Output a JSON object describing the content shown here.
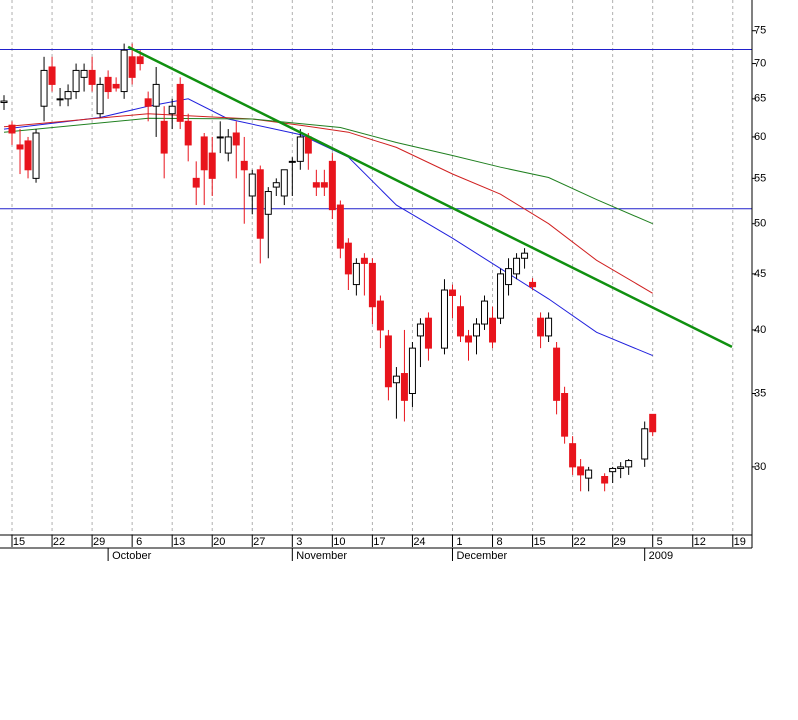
{
  "chart_data": {
    "type": "candlestick",
    "x": [
      -1,
      0,
      1,
      2,
      3,
      4,
      5,
      6,
      7,
      8,
      9,
      10,
      11,
      12,
      13,
      14,
      15,
      16,
      17,
      18,
      19,
      20,
      21,
      22,
      23,
      24,
      25,
      26,
      27,
      28,
      29,
      30,
      31,
      32,
      33,
      34,
      35,
      36,
      37,
      38,
      39,
      40,
      41,
      42,
      43,
      44,
      45,
      46,
      47,
      48,
      49,
      50,
      51,
      52,
      54,
      55,
      56,
      57,
      58,
      59,
      60,
      61,
      62,
      63,
      64,
      65,
      66,
      67,
      68,
      69,
      70,
      71,
      72,
      74,
      75,
      76,
      77,
      79,
      80
    ],
    "open": [
      64.5,
      61.5,
      59,
      59.5,
      55,
      64,
      69.5,
      65,
      65,
      66,
      68,
      69,
      63,
      68,
      67,
      66,
      71,
      71,
      65,
      64,
      62,
      63,
      67,
      62,
      55,
      60,
      58,
      60,
      58,
      60.5,
      57,
      53,
      56,
      51,
      54,
      53,
      57,
      57,
      60,
      54.5,
      54.5,
      57,
      52,
      48,
      44,
      46.5,
      46,
      42.5,
      39.5,
      35.8,
      36.5,
      35,
      39.5,
      41,
      38.5,
      43.5,
      42,
      39.5,
      39.5,
      40.5,
      41,
      41,
      44,
      45,
      46.5,
      44.2,
      41,
      39.5,
      38.5,
      35,
      31.5,
      30,
      29.3,
      29.4,
      29.7,
      29.9,
      30,
      30.5,
      33.5
    ],
    "high": [
      65.5,
      62,
      61,
      60,
      61,
      71,
      71,
      66.5,
      67,
      70,
      70,
      71,
      68,
      69,
      68,
      73,
      73,
      72,
      66,
      69.5,
      64,
      65,
      68,
      63,
      57,
      60.5,
      60,
      62,
      61,
      62,
      60,
      56,
      56.5,
      54,
      55,
      56,
      57.5,
      61,
      60.5,
      56,
      56,
      58,
      52.5,
      48.5,
      46.5,
      47,
      46.5,
      43,
      40,
      37,
      40,
      39,
      41,
      41.5,
      44.5,
      44,
      43,
      40,
      41,
      43,
      42,
      45.5,
      46.5,
      47,
      47.5,
      44.6,
      41.5,
      41.5,
      39,
      35.5,
      32,
      30.5,
      30,
      29.6,
      30,
      30.3,
      30.5,
      33,
      33.5
    ],
    "low": [
      63.5,
      59,
      55.5,
      55,
      54.5,
      62,
      66,
      64,
      64,
      65,
      66,
      66,
      62.5,
      65,
      66,
      65,
      67,
      69,
      62,
      60,
      55,
      61,
      61,
      57,
      52,
      52,
      53,
      58,
      57,
      55,
      50,
      51,
      46,
      46.5,
      53,
      52,
      53,
      56,
      56,
      53,
      53,
      50.5,
      46.5,
      43.5,
      43,
      43,
      40.5,
      38.5,
      34.5,
      33.2,
      33,
      34,
      37,
      37.5,
      38,
      41,
      39,
      37.5,
      38,
      40,
      38.5,
      40.5,
      43,
      44.5,
      45.5,
      43.5,
      38.5,
      39,
      33.5,
      31.5,
      29.5,
      28.5,
      28.5,
      28.5,
      29,
      29.3,
      29.5,
      30,
      32
    ],
    "close": [
      64.7,
      60.5,
      58.5,
      56,
      60.5,
      69,
      67,
      65,
      66,
      69,
      69,
      67,
      67,
      66,
      66.5,
      72,
      68,
      70,
      64,
      67,
      58,
      64,
      62,
      59,
      54,
      56,
      55,
      60,
      60,
      59,
      56,
      55.5,
      48.5,
      53.5,
      54.5,
      56,
      57,
      60,
      58,
      54,
      54,
      51.5,
      47.5,
      45,
      46,
      46,
      42,
      40,
      35.5,
      36.3,
      34.5,
      38.5,
      40.5,
      38.5,
      43.5,
      43,
      39.5,
      39,
      40.5,
      42.5,
      39,
      45,
      45.5,
      46.5,
      47,
      43.8,
      39.5,
      41,
      34.5,
      32,
      30,
      29.5,
      29.8,
      29,
      29.9,
      30,
      30.4,
      32.5,
      32.3
    ],
    "up_color": "#000000",
    "down_color": "#e8141c",
    "overlays": [
      {
        "color": "#2020dd",
        "x": [
          -1,
          11,
          17,
          22,
          27,
          36,
          42,
          48,
          55,
          61,
          67,
          73,
          80
        ],
        "values": [
          61,
          62.5,
          64,
          65,
          62.3,
          60.3,
          57.5,
          52,
          48.5,
          45.5,
          42.7,
          39.8,
          37.9
        ]
      },
      {
        "color": "#d02020",
        "x": [
          -1,
          17,
          30,
          36,
          42,
          48,
          55,
          61,
          67,
          73,
          80
        ],
        "values": [
          61.3,
          63,
          62.3,
          61.5,
          60.6,
          58.7,
          55.5,
          53.2,
          50,
          46.3,
          43.2
        ]
      },
      {
        "color": "#208020",
        "x": [
          -1,
          17,
          30,
          41,
          48,
          55,
          61,
          67,
          73,
          80
        ],
        "values": [
          60.6,
          62.4,
          62.3,
          61.2,
          59.3,
          57.7,
          56.3,
          55.1,
          52.6,
          50
        ]
      }
    ],
    "hlines": [
      72.1,
      51.6
    ],
    "hline_color": "#2020cc",
    "trendline": {
      "x": [
        14.5,
        89.9
      ],
      "y": [
        72.5,
        38.6
      ],
      "color": "#109010"
    },
    "log_y": true,
    "ylim": [
      26,
      80
    ],
    "yticks": [
      30,
      35,
      40,
      45,
      50,
      55,
      60,
      65,
      70,
      75
    ],
    "xlim": [
      -1.5,
      92.4
    ],
    "xticks": [
      {
        "value": 0,
        "label": "15"
      },
      {
        "value": 5,
        "label": "22"
      },
      {
        "value": 10,
        "label": "29"
      },
      {
        "value": 15,
        "label": "6"
      },
      {
        "value": 20,
        "label": "13"
      },
      {
        "value": 25,
        "label": "20"
      },
      {
        "value": 30,
        "label": "27"
      },
      {
        "value": 35,
        "label": "3"
      },
      {
        "value": 40,
        "label": "10"
      },
      {
        "value": 45,
        "label": "17"
      },
      {
        "value": 50,
        "label": "24"
      },
      {
        "value": 55,
        "label": "1"
      },
      {
        "value": 60,
        "label": "8"
      },
      {
        "value": 65,
        "label": "15"
      },
      {
        "value": 70,
        "label": "22"
      },
      {
        "value": 75,
        "label": "29"
      },
      {
        "value": 80,
        "label": "5"
      },
      {
        "value": 85,
        "label": "12"
      },
      {
        "value": 90,
        "label": "19"
      }
    ],
    "month_labels": [
      {
        "value": 12,
        "label": "October"
      },
      {
        "value": 35,
        "label": "November"
      },
      {
        "value": 55,
        "label": "December"
      },
      {
        "value": 79,
        "label": "2009"
      }
    ],
    "grid": true
  }
}
